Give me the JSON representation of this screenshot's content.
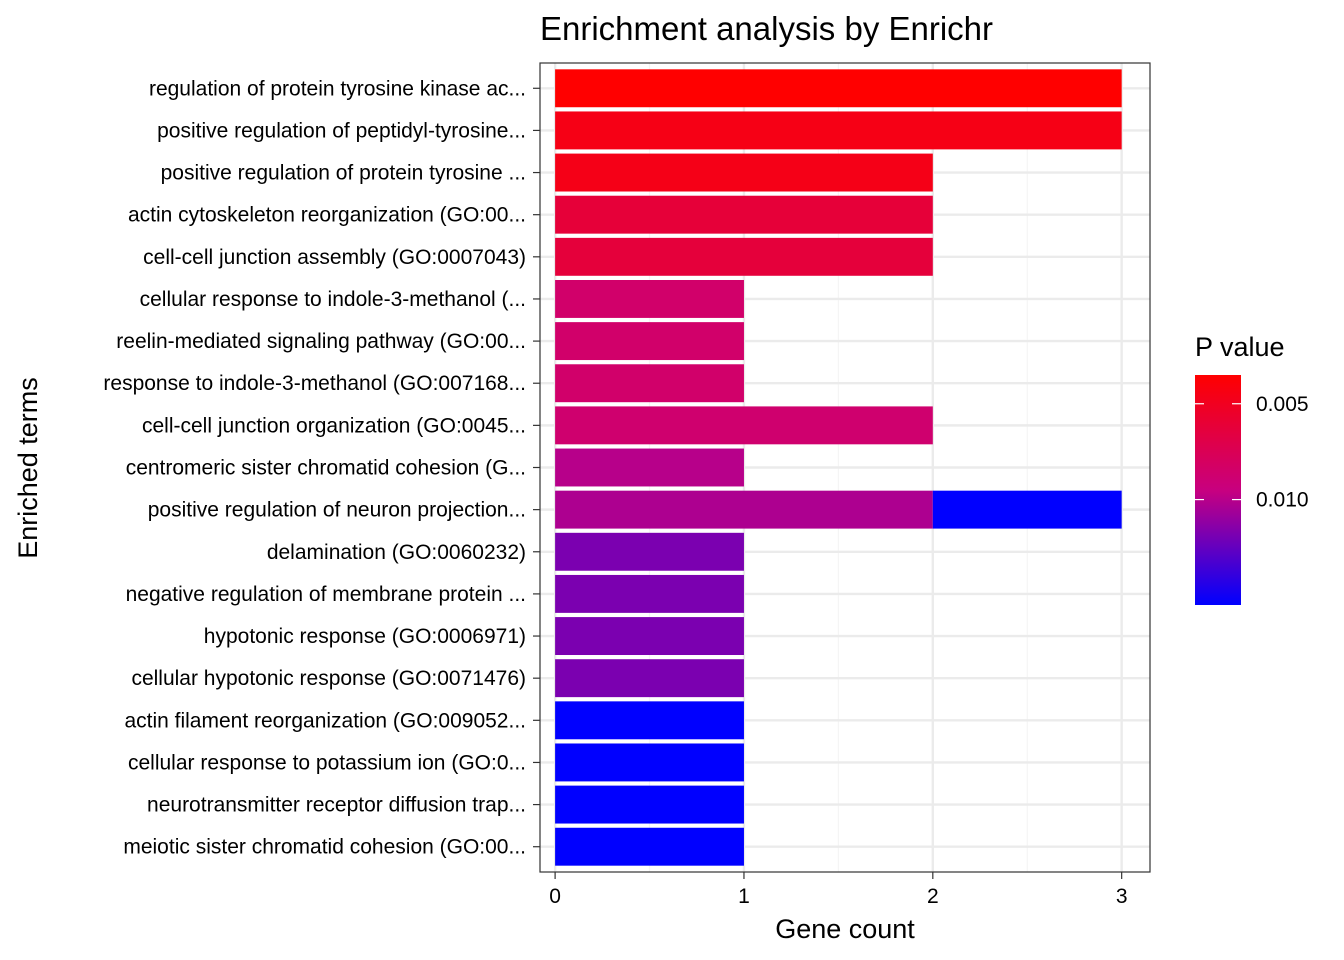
{
  "chart_data": {
    "type": "bar",
    "orientation": "horizontal",
    "title": "Enrichment analysis by Enrichr",
    "xlabel": "Gene count",
    "ylabel": "Enriched terms",
    "xlim": [
      -0.08,
      3.15
    ],
    "xticks": [
      "0",
      "1",
      "2",
      "3"
    ],
    "grid": true,
    "categories": [
      "regulation of protein tyrosine kinase ac...",
      "positive regulation of peptidyl-tyrosine...",
      "positive regulation of protein tyrosine ...",
      "actin cytoskeleton reorganization (GO:00...",
      "cell-cell junction assembly (GO:0007043)",
      "cellular response to indole-3-methanol (...",
      "reelin-mediated signaling pathway (GO:00...",
      "response to indole-3-methanol (GO:007168...",
      "cell-cell junction organization (GO:0045...",
      "centromeric sister chromatid cohesion (G...",
      "positive regulation of neuron projection...",
      "delamination (GO:0060232)",
      "negative regulation of membrane protein ...",
      "hypotonic response (GO:0006971)",
      "cellular hypotonic response (GO:0071476)",
      "actin filament reorganization (GO:009052...",
      "cellular response to potassium ion (GO:0...",
      "neurotransmitter receptor diffusion trap...",
      "meiotic sister chromatid cohesion (GO:00..."
    ],
    "bars": [
      {
        "segments": [
          {
            "value": 3,
            "p": 0.0035
          }
        ]
      },
      {
        "segments": [
          {
            "value": 3,
            "p": 0.0045
          }
        ]
      },
      {
        "segments": [
          {
            "value": 2,
            "p": 0.0046
          }
        ]
      },
      {
        "segments": [
          {
            "value": 2,
            "p": 0.0062
          }
        ]
      },
      {
        "segments": [
          {
            "value": 2,
            "p": 0.0063
          }
        ]
      },
      {
        "segments": [
          {
            "value": 1,
            "p": 0.0085
          }
        ]
      },
      {
        "segments": [
          {
            "value": 1,
            "p": 0.0085
          }
        ]
      },
      {
        "segments": [
          {
            "value": 1,
            "p": 0.0085
          }
        ]
      },
      {
        "segments": [
          {
            "value": 2,
            "p": 0.0087
          }
        ]
      },
      {
        "segments": [
          {
            "value": 1,
            "p": 0.01
          }
        ]
      },
      {
        "segments": [
          {
            "value": 2,
            "p": 0.0103
          },
          {
            "value": 1,
            "p": 0.0155
          }
        ]
      },
      {
        "segments": [
          {
            "value": 1,
            "p": 0.0118
          }
        ]
      },
      {
        "segments": [
          {
            "value": 1,
            "p": 0.0118
          }
        ]
      },
      {
        "segments": [
          {
            "value": 1,
            "p": 0.0118
          }
        ]
      },
      {
        "segments": [
          {
            "value": 1,
            "p": 0.0118
          }
        ]
      },
      {
        "segments": [
          {
            "value": 1,
            "p": 0.0155
          }
        ]
      },
      {
        "segments": [
          {
            "value": 1,
            "p": 0.0155
          }
        ]
      },
      {
        "segments": [
          {
            "value": 1,
            "p": 0.0155
          }
        ]
      },
      {
        "segments": [
          {
            "value": 1,
            "p": 0.0155
          }
        ]
      }
    ],
    "legend": {
      "title": "P value",
      "placement": "right",
      "p_range": [
        0.0035,
        0.0155
      ],
      "ticks": [
        {
          "value": 0.005,
          "label": "0.005"
        },
        {
          "value": 0.01,
          "label": "0.010"
        }
      ],
      "color_low_p": "#FF0000",
      "color_high_p": "#0000FF"
    },
    "colors": {
      "panel_border": "#333333",
      "grid_major": "#EBEBEB",
      "grid_minor": "#F5F5F5",
      "axis_text": "#000000"
    }
  }
}
